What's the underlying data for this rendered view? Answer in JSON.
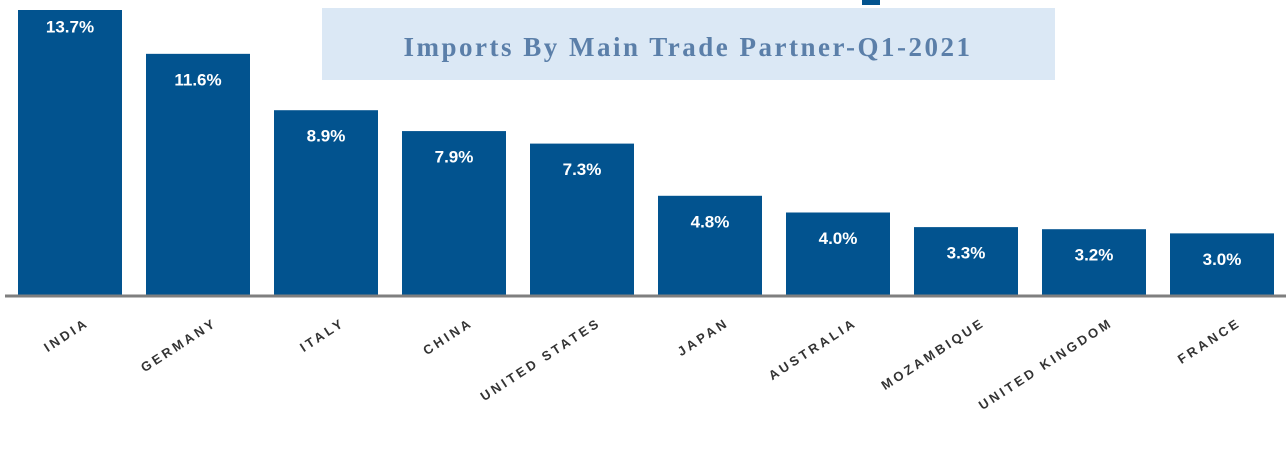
{
  "chart_data": {
    "type": "bar",
    "title": "Imports By Main Trade Partner-Q1-2021",
    "categories": [
      "INDIA",
      "GERMANY",
      "ITALY",
      "CHINA",
      "UNITED STATES",
      "JAPAN",
      "AUSTRALIA",
      "MOZAMBIQUE",
      "UNITED KINGDOM",
      "FRANCE"
    ],
    "values": [
      13.7,
      11.6,
      8.9,
      7.9,
      7.3,
      4.8,
      4.0,
      3.3,
      3.2,
      3.0
    ],
    "value_labels": [
      "13.7%",
      "11.6%",
      "8.9%",
      "7.9%",
      "7.3%",
      "4.8%",
      "4.0%",
      "3.3%",
      "3.2%",
      "3.0%"
    ],
    "color": "#02538f"
  }
}
